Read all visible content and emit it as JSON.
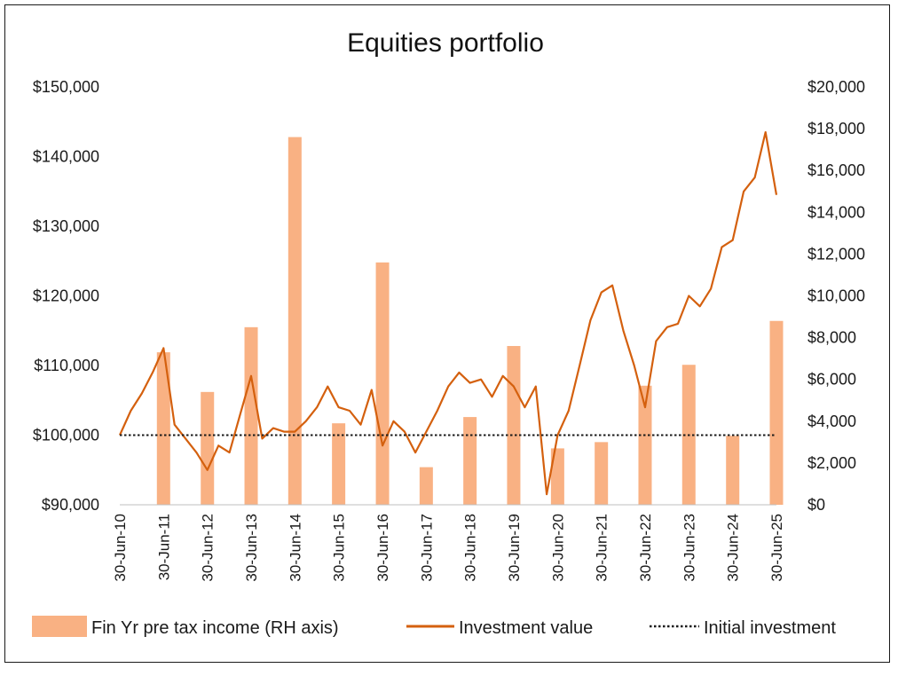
{
  "chart_data": {
    "type": "bar+line",
    "title": "Equities portfolio",
    "colors": {
      "bars": "#F9B183",
      "line": "#D4600E",
      "initial": "#1a1a1a"
    },
    "x_ticks": [
      "30-Jun-10",
      "30-Jun-11",
      "30-Jun-12",
      "30-Jun-13",
      "30-Jun-14",
      "30-Jun-15",
      "30-Jun-16",
      "30-Jun-17",
      "30-Jun-18",
      "30-Jun-19",
      "30-Jun-20",
      "30-Jun-21",
      "30-Jun-22",
      "30-Jun-23",
      "30-Jun-24",
      "30-Jun-25"
    ],
    "left_axis": {
      "ylim": [
        90000,
        150000
      ],
      "ticks": [
        "$90,000",
        "$100,000",
        "$110,000",
        "$120,000",
        "$130,000",
        "$140,000",
        "$150,000"
      ]
    },
    "right_axis": {
      "ylim": [
        0,
        20000
      ],
      "ticks": [
        "$0",
        "$2,000",
        "$4,000",
        "$6,000",
        "$8,000",
        "$10,000",
        "$12,000",
        "$14,000",
        "$16,000",
        "$18,000",
        "$20,000"
      ]
    },
    "bars": {
      "name": "Fin Yr pre tax income (RH axis)",
      "categories": [
        "30-Jun-11",
        "30-Jun-12",
        "30-Jun-13",
        "30-Jun-14",
        "30-Jun-15",
        "30-Jun-16",
        "30-Jun-17",
        "30-Jun-18",
        "30-Jun-19",
        "30-Jun-20",
        "30-Jun-21",
        "30-Jun-22",
        "30-Jun-23",
        "30-Jun-24",
        "30-Jun-25"
      ],
      "values": [
        7300,
        5400,
        8500,
        17600,
        3900,
        11600,
        1800,
        4200,
        7600,
        2700,
        3000,
        5700,
        6700,
        3300,
        8800
      ]
    },
    "line": {
      "name": "Investment value",
      "x": [
        "30-Jun-10",
        "30-Sep-10",
        "31-Dec-10",
        "31-Mar-11",
        "30-Jun-11",
        "30-Sep-11",
        "31-Dec-11",
        "31-Mar-12",
        "30-Jun-12",
        "30-Sep-12",
        "31-Dec-12",
        "31-Mar-13",
        "30-Jun-13",
        "30-Sep-13",
        "31-Dec-13",
        "31-Mar-14",
        "30-Jun-14",
        "30-Sep-14",
        "31-Dec-14",
        "31-Mar-15",
        "30-Jun-15",
        "30-Sep-15",
        "31-Dec-15",
        "31-Mar-16",
        "30-Jun-16",
        "30-Sep-16",
        "31-Dec-16",
        "31-Mar-17",
        "30-Jun-17",
        "30-Sep-17",
        "31-Dec-17",
        "31-Mar-18",
        "30-Jun-18",
        "30-Sep-18",
        "31-Dec-18",
        "31-Mar-19",
        "30-Jun-19",
        "30-Sep-19",
        "31-Dec-19",
        "31-Mar-20",
        "30-Jun-20",
        "30-Sep-20",
        "31-Dec-20",
        "31-Mar-21",
        "30-Jun-21",
        "30-Sep-21",
        "31-Dec-21",
        "31-Mar-22",
        "30-Jun-22",
        "30-Sep-22",
        "31-Dec-22",
        "31-Mar-23",
        "30-Jun-23",
        "30-Sep-23",
        "31-Dec-23",
        "31-Mar-24",
        "30-Jun-24",
        "30-Sep-24",
        "31-Dec-24",
        "31-Mar-25",
        "30-Jun-25"
      ],
      "y": [
        100000,
        103500,
        106000,
        109000,
        112500,
        101500,
        99500,
        97500,
        95000,
        98500,
        97500,
        103000,
        108500,
        99500,
        101000,
        100500,
        100500,
        102000,
        104000,
        107000,
        104000,
        103500,
        101500,
        106500,
        98500,
        102000,
        100500,
        97500,
        100500,
        103500,
        107000,
        109000,
        107500,
        108000,
        105500,
        108500,
        107000,
        104000,
        107000,
        91500,
        100000,
        103500,
        110000,
        116500,
        120500,
        121500,
        115000,
        110000,
        104000,
        113500,
        115500,
        116000,
        120000,
        118500,
        121000,
        127000,
        128000,
        135000,
        137000,
        143500,
        134500
      ]
    },
    "initial_line": {
      "name": "Initial investment",
      "value": 100000
    },
    "legend": [
      "Fin Yr pre tax income (RH axis)",
      "Investment value",
      "Initial investment"
    ]
  }
}
